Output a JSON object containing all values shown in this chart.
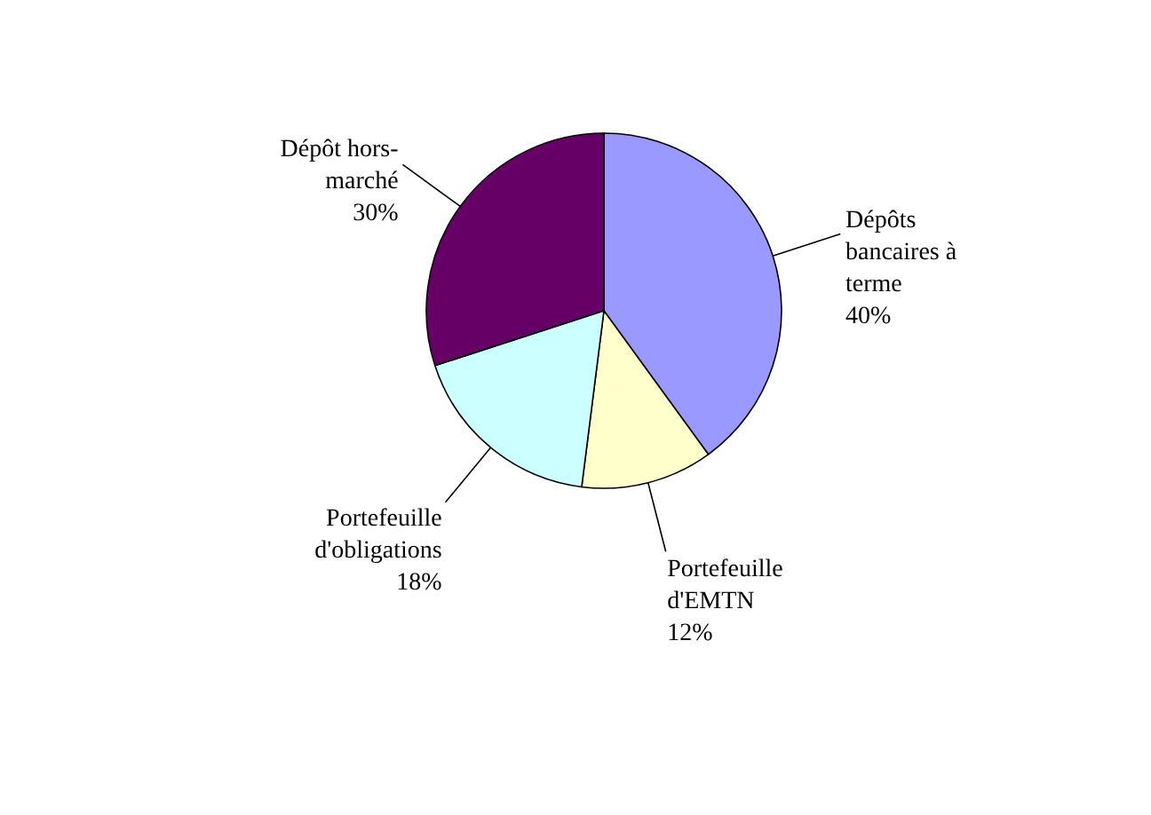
{
  "chart_data": {
    "type": "pie",
    "categories": [
      "Dépôts bancaires à terme",
      "Portefeuille d'EMTN",
      "Portefeuille d'obligations",
      "Dépôt hors-marché"
    ],
    "values": [
      40,
      12,
      18,
      30
    ],
    "colors": [
      "#9999ff",
      "#ffffcc",
      "#ccffff",
      "#660066"
    ],
    "value_labels": [
      "40%",
      "12%",
      "18%",
      "30%"
    ]
  }
}
